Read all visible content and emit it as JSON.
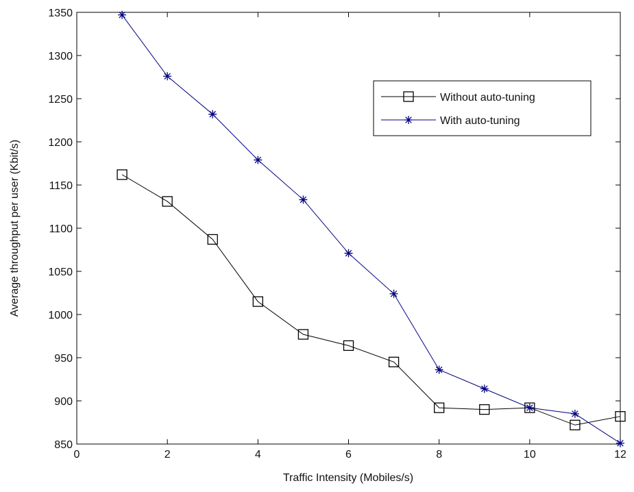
{
  "chart_data": {
    "type": "line",
    "title": "",
    "xlabel": "Traffic Intensity (Mobiles/s)",
    "ylabel": "Average throughput per user (Kbit/s)",
    "xlim": [
      0,
      12
    ],
    "ylim": [
      850,
      1350
    ],
    "xticks": [
      0,
      2,
      4,
      6,
      8,
      10,
      12
    ],
    "yticks": [
      850,
      900,
      950,
      1000,
      1050,
      1100,
      1150,
      1200,
      1250,
      1300,
      1350
    ],
    "grid": false,
    "legend_position": "top-right",
    "x": [
      1,
      2,
      3,
      4,
      5,
      6,
      7,
      8,
      9,
      10,
      11,
      12
    ],
    "series": [
      {
        "name": "Without auto-tuning",
        "color": "#000000",
        "marker": "square",
        "values": [
          1162,
          1131,
          1087,
          1015,
          977,
          964,
          945,
          892,
          890,
          892,
          872,
          882
        ]
      },
      {
        "name": "With auto-tuning",
        "color": "#000080",
        "marker": "star",
        "values": [
          1347,
          1276,
          1232,
          1179,
          1133,
          1071,
          1024,
          936,
          914,
          892,
          885,
          851
        ]
      }
    ]
  }
}
